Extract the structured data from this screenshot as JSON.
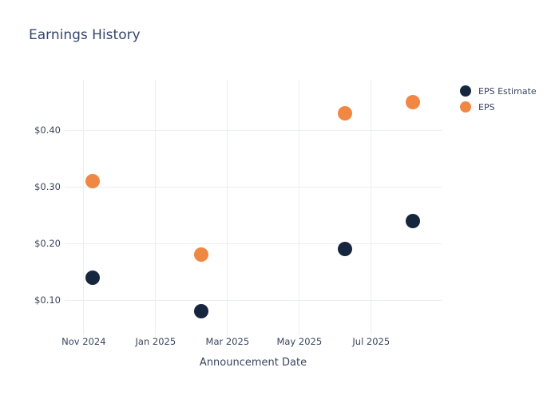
{
  "chart": {
    "title": "Earnings History",
    "xlabel": "Announcement Date",
    "title_color": "#36466b",
    "text_color": "#39455e",
    "grid_color": "#eaedf6",
    "background": "#ffffff"
  },
  "legend": {
    "items": [
      {
        "label": "EPS Estimate",
        "color": "#17263f"
      },
      {
        "label": "EPS",
        "color": "#f08743"
      }
    ]
  },
  "chart_data": {
    "type": "scatter",
    "title": "Earnings History",
    "xlabel": "Announcement Date",
    "ylabel": "",
    "grid": true,
    "legend_position": "top-right-outside",
    "x_axis": {
      "tick_labels": [
        "Nov 2024",
        "Jan 2025",
        "Mar 2025",
        "May 2025",
        "Jul 2025"
      ],
      "tick_months_from_nov2024": [
        0,
        2,
        4,
        6,
        8
      ],
      "xlim_months_from_nov2024": [
        -0.53,
        9.96
      ]
    },
    "y_axis": {
      "tick_labels": [
        "$0.10",
        "$0.20",
        "$0.30",
        "$0.40"
      ],
      "tick_values": [
        0.1,
        0.2,
        0.3,
        0.4
      ],
      "ylim": [
        0.038,
        0.489
      ]
    },
    "series": [
      {
        "name": "EPS Estimate",
        "color": "#17263f",
        "points": [
          {
            "x_approx": "early Nov 2024",
            "x_months": 0.24,
            "y": 0.14
          },
          {
            "x_approx": "early Feb 2025",
            "x_months": 3.26,
            "y": 0.08
          },
          {
            "x_approx": "early Jun 2025",
            "x_months": 7.28,
            "y": 0.19
          },
          {
            "x_approx": "early Aug 2025",
            "x_months": 9.17,
            "y": 0.24
          }
        ]
      },
      {
        "name": "EPS",
        "color": "#f08743",
        "points": [
          {
            "x_approx": "early Nov 2024",
            "x_months": 0.24,
            "y": 0.31
          },
          {
            "x_approx": "early Feb 2025",
            "x_months": 3.28,
            "y": 0.18
          },
          {
            "x_approx": "early Jun 2025",
            "x_months": 7.26,
            "y": 0.43
          },
          {
            "x_approx": "early Aug 2025",
            "x_months": 9.15,
            "y": 0.45
          }
        ]
      }
    ]
  }
}
